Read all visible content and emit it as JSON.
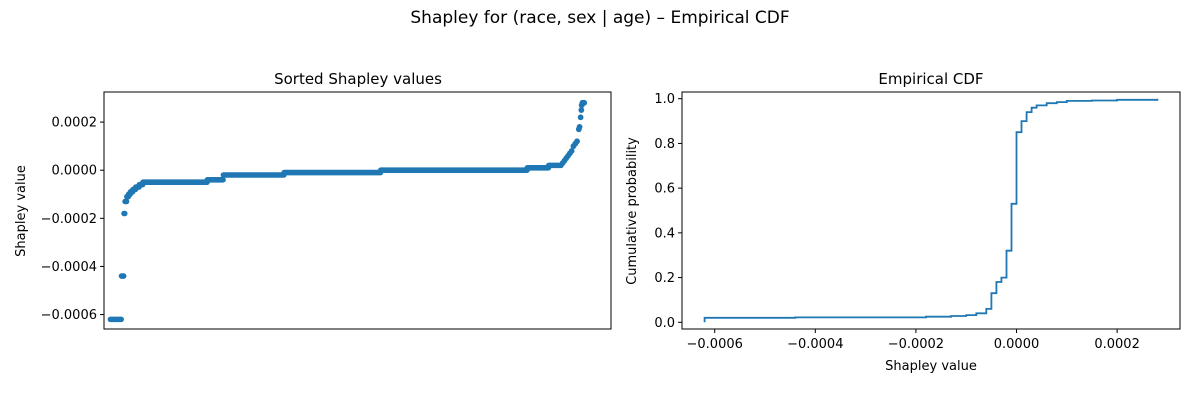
{
  "figure": {
    "suptitle": "Shapley for (race, sex | age) – Empirical CDF"
  },
  "colors": {
    "series": "#1f77b4",
    "axes": "#000000",
    "background": "#ffffff"
  },
  "chart_data": [
    {
      "type": "scatter",
      "title": "Sorted Shapley values",
      "xlabel": "",
      "ylabel": "Shapley value",
      "x_ticks_visible": false,
      "xlim": [
        -18,
        1400
      ],
      "ylim": [
        -0.00066,
        0.000325
      ],
      "yticks": [
        -0.0006,
        -0.0004,
        -0.0002,
        0.0,
        0.0002
      ],
      "ytick_labels": [
        "−0.0006",
        "−0.0004",
        "−0.0002",
        "0.0000",
        "0.0002"
      ],
      "grid": false,
      "segments": [
        {
          "x_start": 0,
          "x_end": 30,
          "y": -0.00062
        },
        {
          "x_start": 31,
          "x_end": 37,
          "y": -0.00044
        },
        {
          "x_start": 38,
          "x_end": 40,
          "y": -0.00018
        },
        {
          "x_start": 41,
          "x_end": 45,
          "y": -0.00013
        },
        {
          "x_start": 46,
          "x_end": 50,
          "y": -0.00011
        },
        {
          "x_start": 51,
          "x_end": 55,
          "y": -0.0001
        },
        {
          "x_start": 56,
          "x_end": 62,
          "y": -9e-05
        },
        {
          "x_start": 63,
          "x_end": 70,
          "y": -8e-05
        },
        {
          "x_start": 71,
          "x_end": 80,
          "y": -7e-05
        },
        {
          "x_start": 81,
          "x_end": 90,
          "y": -6e-05
        },
        {
          "x_start": 91,
          "x_end": 270,
          "y": -5e-05
        },
        {
          "x_start": 271,
          "x_end": 315,
          "y": -4e-05
        },
        {
          "x_start": 316,
          "x_end": 485,
          "y": -2e-05
        },
        {
          "x_start": 486,
          "x_end": 755,
          "y": -1e-05
        },
        {
          "x_start": 756,
          "x_end": 1165,
          "y": 0.0
        },
        {
          "x_start": 1166,
          "x_end": 1225,
          "y": 1e-05
        },
        {
          "x_start": 1226,
          "x_end": 1260,
          "y": 2e-05
        }
      ],
      "tail_points": [
        {
          "x": 1265,
          "y": 3e-05
        },
        {
          "x": 1270,
          "y": 4e-05
        },
        {
          "x": 1275,
          "y": 5e-05
        },
        {
          "x": 1280,
          "y": 6e-05
        },
        {
          "x": 1285,
          "y": 7e-05
        },
        {
          "x": 1290,
          "y": 8e-05
        },
        {
          "x": 1295,
          "y": 0.0001
        },
        {
          "x": 1300,
          "y": 0.00011
        },
        {
          "x": 1305,
          "y": 0.00012
        },
        {
          "x": 1310,
          "y": 0.00017
        },
        {
          "x": 1312,
          "y": 0.00018
        },
        {
          "x": 1315,
          "y": 0.00022
        },
        {
          "x": 1317,
          "y": 0.00025
        },
        {
          "x": 1318,
          "y": 0.00027
        },
        {
          "x": 1320,
          "y": 0.00028
        },
        {
          "x": 1322,
          "y": 0.00028
        },
        {
          "x": 1325,
          "y": 0.00028
        }
      ]
    },
    {
      "type": "line",
      "title": "Empirical CDF",
      "xlabel": "Shapley value",
      "ylabel": "Cumulative probability",
      "xlim": [
        -0.000665,
        0.000325
      ],
      "ylim": [
        -0.03,
        1.03
      ],
      "xticks": [
        -0.0006,
        -0.0004,
        -0.0002,
        0.0,
        0.0002
      ],
      "xtick_labels": [
        "−0.0006",
        "−0.0004",
        "−0.0002",
        "0.0000",
        "0.0002"
      ],
      "yticks": [
        0.0,
        0.2,
        0.4,
        0.6,
        0.8,
        1.0
      ],
      "ytick_labels": [
        "0.0",
        "0.2",
        "0.4",
        "0.6",
        "0.8",
        "1.0"
      ],
      "grid": false,
      "x": [
        -0.00062,
        -0.00044,
        -0.00018,
        -0.00013,
        -0.0001,
        -8e-05,
        -6e-05,
        -5e-05,
        -4e-05,
        -3e-05,
        -2e-05,
        -1e-05,
        0.0,
        1e-05,
        2e-05,
        3e-05,
        4e-05,
        6e-05,
        8e-05,
        0.0001,
        0.00015,
        0.0002,
        0.00028
      ],
      "y": [
        0.02,
        0.022,
        0.025,
        0.028,
        0.032,
        0.04,
        0.06,
        0.13,
        0.18,
        0.2,
        0.32,
        0.53,
        0.85,
        0.9,
        0.94,
        0.96,
        0.97,
        0.98,
        0.985,
        0.99,
        0.992,
        0.995,
        1.0
      ]
    }
  ]
}
